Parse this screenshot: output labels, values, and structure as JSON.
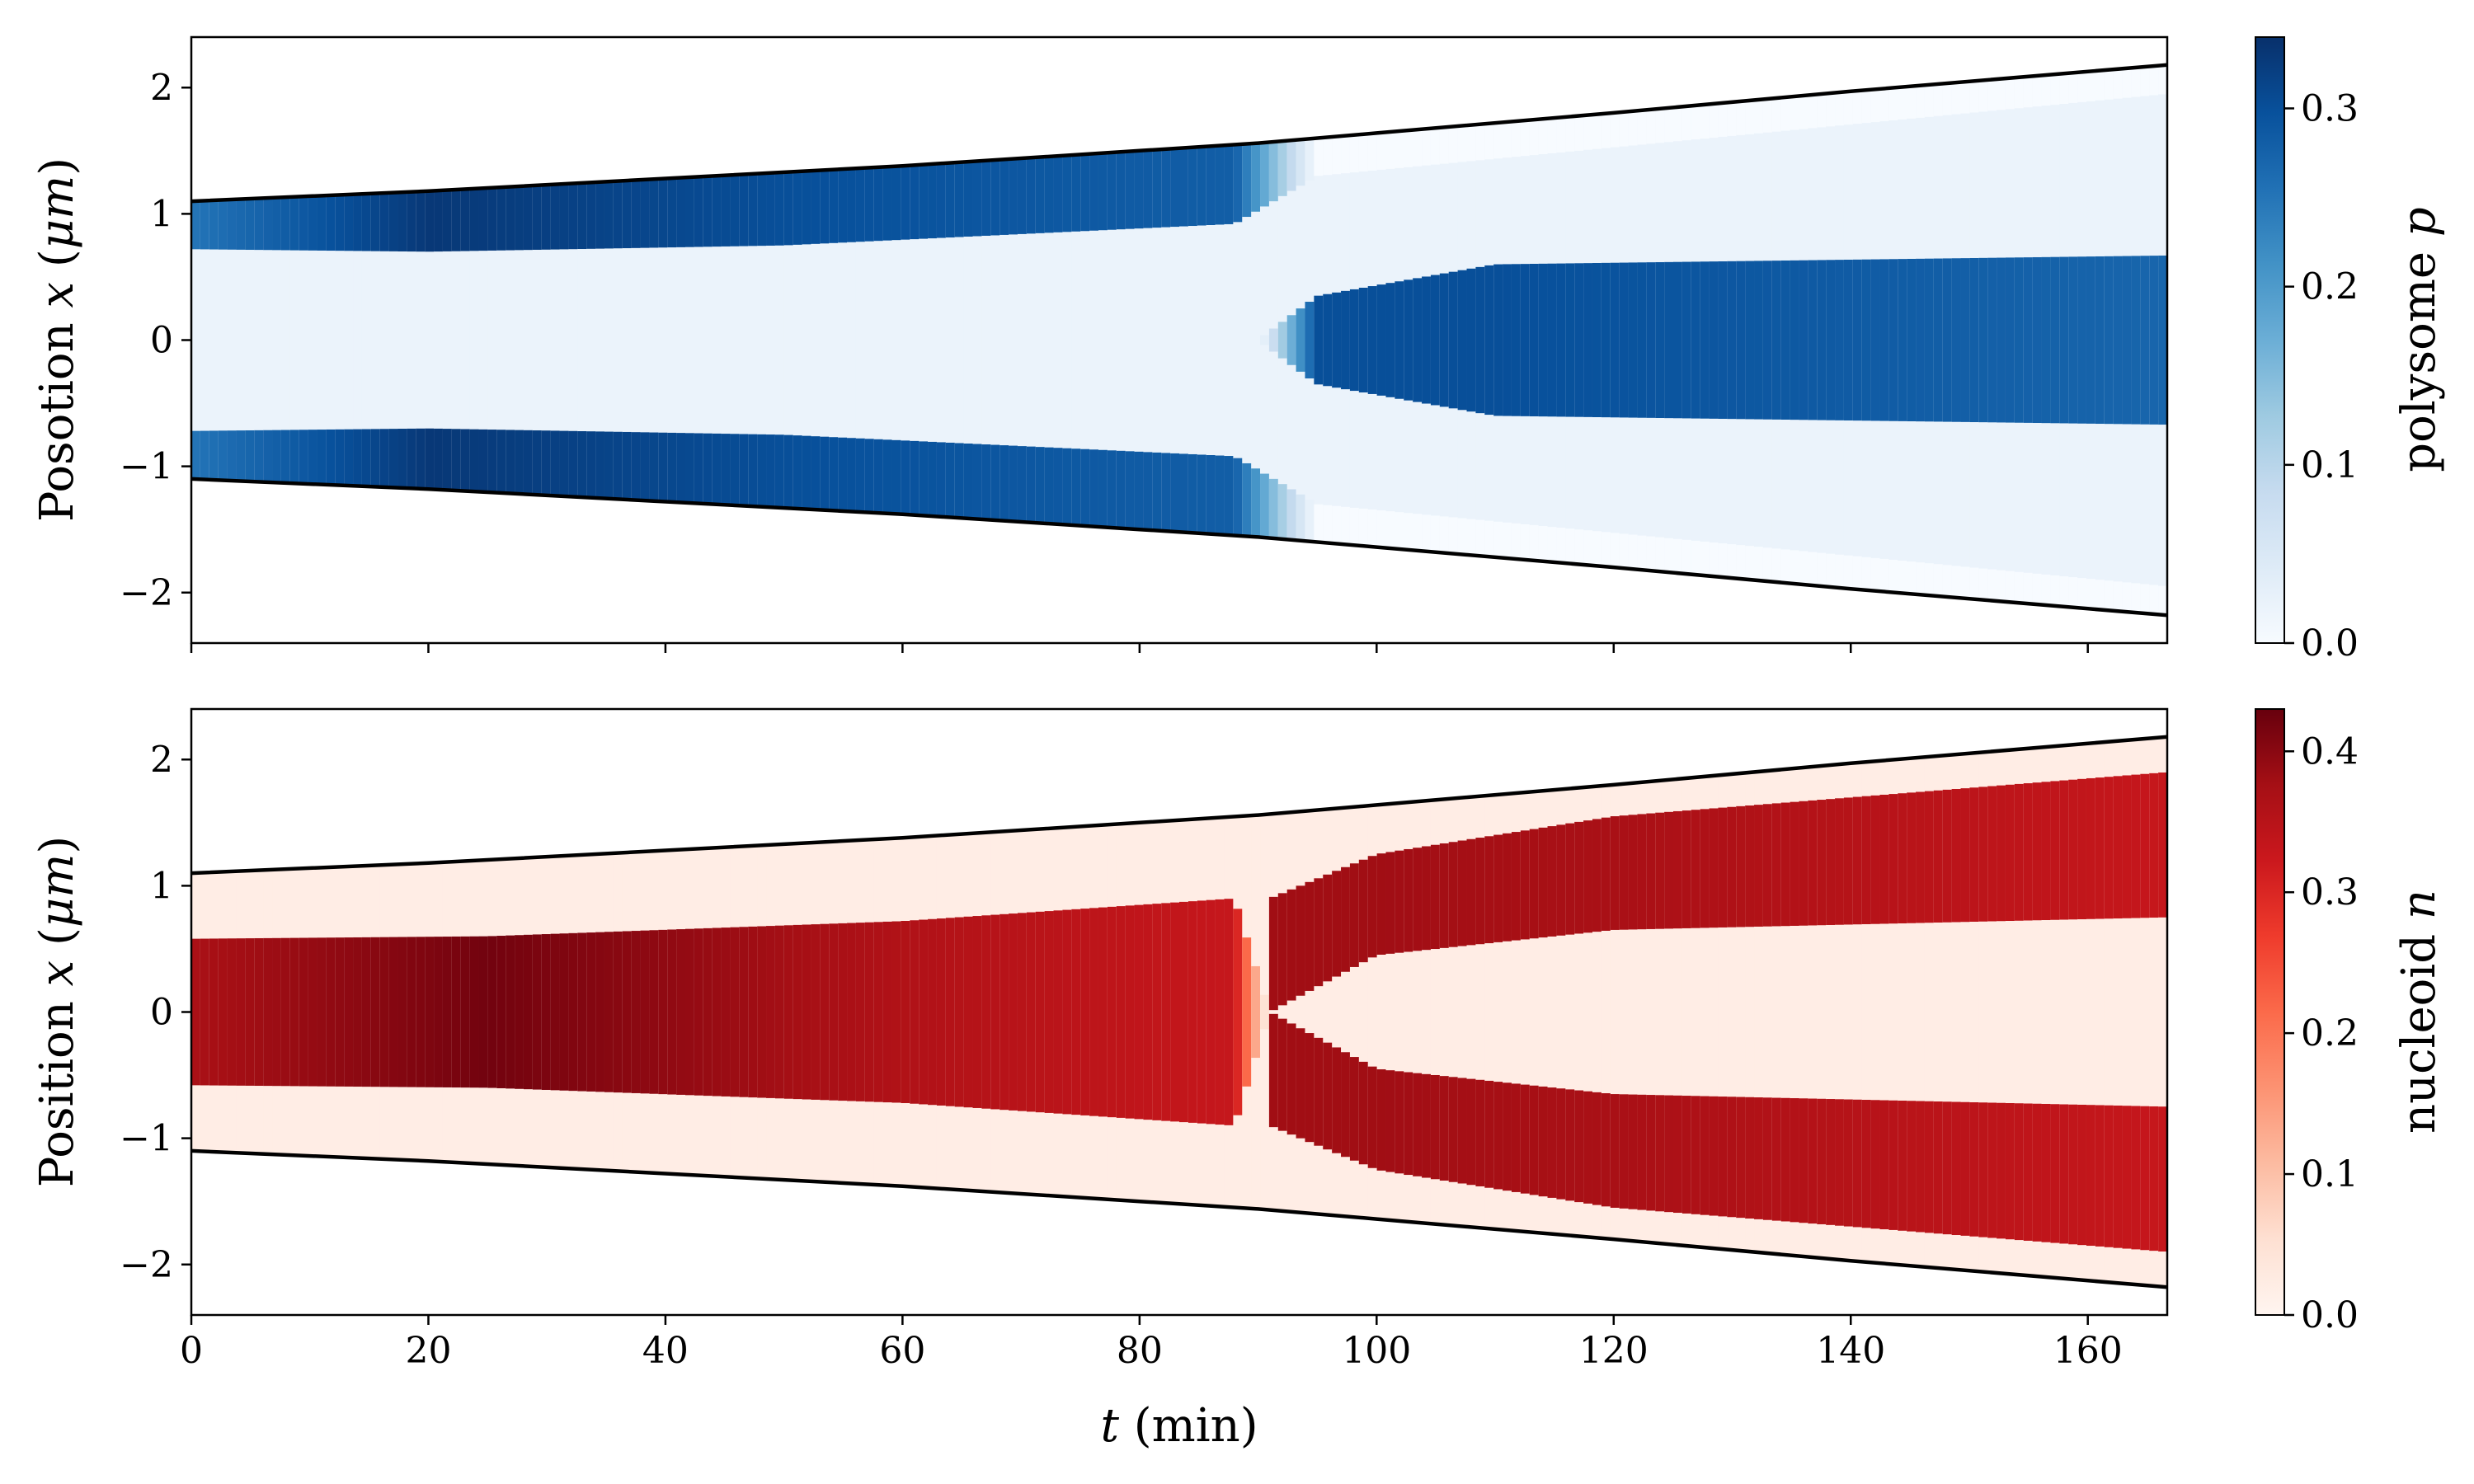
{
  "chart_data": [
    {
      "type": "heatmap",
      "panel": "top",
      "ylabel": {
        "text": "Posotion ",
        "var": "x",
        "unit_open": " (",
        "unit": "μm",
        "unit_close": ")"
      },
      "colorbar_label": {
        "text": "polysome ",
        "var": "p"
      },
      "colormap": "Blues",
      "colormap_stops": [
        "#f7fbff",
        "#deebf7",
        "#c6dbef",
        "#9ecae1",
        "#6baed6",
        "#4292c6",
        "#2171b5",
        "#08519c",
        "#08306b"
      ],
      "xlim": [
        0,
        166.7
      ],
      "ylim": [
        -2.4,
        2.4
      ],
      "clim": [
        0,
        0.34
      ],
      "x_ticks": [
        0,
        20,
        40,
        60,
        80,
        100,
        120,
        140,
        160
      ],
      "y_ticks": [
        2,
        1,
        0,
        -1,
        -2
      ],
      "y_tick_labels": [
        "2",
        "1",
        "0",
        "−1",
        "−2"
      ],
      "colorbar_ticks": [
        0.3,
        0.2,
        0.1,
        0.0
      ],
      "colorbar_tick_labels": [
        "0.3",
        "0.2",
        "0.1",
        "0.0"
      ],
      "show_x_tick_labels": false,
      "boundary_half_width": [
        {
          "t": 0,
          "x": 1.1
        },
        {
          "t": 20,
          "x": 1.18
        },
        {
          "t": 40,
          "x": 1.28
        },
        {
          "t": 60,
          "x": 1.38
        },
        {
          "t": 80,
          "x": 1.5
        },
        {
          "t": 90,
          "x": 1.56
        },
        {
          "t": 100,
          "x": 1.64
        },
        {
          "t": 120,
          "x": 1.8
        },
        {
          "t": 140,
          "x": 1.97
        },
        {
          "t": 166.7,
          "x": 2.18
        }
      ],
      "cell_band": [
        {
          "t": 0,
          "inner": 0.72,
          "value": 0.25
        },
        {
          "t": 20,
          "inner": 0.7,
          "value": 0.33
        },
        {
          "t": 50,
          "inner": 0.75,
          "value": 0.3
        },
        {
          "t": 88,
          "inner": 0.92,
          "value": 0.28
        },
        {
          "t": 95,
          "inner": 1.3,
          "value": 0.0
        },
        {
          "t": 166.7,
          "inner": 1.95,
          "value": 0.0
        }
      ],
      "center_band": [
        {
          "t": 90,
          "half_width": 0.0,
          "value": 0.0
        },
        {
          "t": 95,
          "half_width": 0.35,
          "value": 0.3
        },
        {
          "t": 110,
          "half_width": 0.6,
          "value": 0.3
        },
        {
          "t": 166.7,
          "half_width": 0.67,
          "value": 0.27
        }
      ],
      "background_value": 0.02
    },
    {
      "type": "heatmap",
      "panel": "bottom",
      "ylabel": {
        "text": "Position ",
        "var": "x",
        "unit_open": " (",
        "unit": "μm",
        "unit_close": ")"
      },
      "xlabel": {
        "var": "t",
        "text": " (min)"
      },
      "colorbar_label": {
        "text": "nucleoid ",
        "var": "n"
      },
      "colormap": "Reds",
      "colormap_stops": [
        "#fff5f0",
        "#fee0d2",
        "#fcbba1",
        "#fc9272",
        "#fb6a4a",
        "#ef3b2c",
        "#cb181d",
        "#a50f15",
        "#67000d"
      ],
      "xlim": [
        0,
        166.7
      ],
      "ylim": [
        -2.4,
        2.4
      ],
      "clim": [
        0,
        0.43
      ],
      "x_ticks": [
        0,
        20,
        40,
        60,
        80,
        100,
        120,
        140,
        160
      ],
      "x_tick_labels": [
        "0",
        "20",
        "40",
        "60",
        "80",
        "100",
        "120",
        "140",
        "160"
      ],
      "y_ticks": [
        2,
        1,
        0,
        -1,
        -2
      ],
      "y_tick_labels": [
        "2",
        "1",
        "0",
        "−1",
        "−2"
      ],
      "colorbar_ticks": [
        0.4,
        0.3,
        0.2,
        0.1,
        0.0
      ],
      "colorbar_tick_labels": [
        "0.4",
        "0.3",
        "0.2",
        "0.1",
        "0.0"
      ],
      "show_x_tick_labels": true,
      "boundary_half_width": [
        {
          "t": 0,
          "x": 1.1
        },
        {
          "t": 20,
          "x": 1.18
        },
        {
          "t": 40,
          "x": 1.28
        },
        {
          "t": 60,
          "x": 1.38
        },
        {
          "t": 80,
          "x": 1.5
        },
        {
          "t": 90,
          "x": 1.56
        },
        {
          "t": 100,
          "x": 1.64
        },
        {
          "t": 120,
          "x": 1.8
        },
        {
          "t": 140,
          "x": 1.97
        },
        {
          "t": 166.7,
          "x": 2.18
        }
      ],
      "center_band": [
        {
          "t": 0,
          "half_width": 0.58,
          "value": 0.37
        },
        {
          "t": 25,
          "half_width": 0.6,
          "value": 0.42
        },
        {
          "t": 60,
          "half_width": 0.72,
          "value": 0.36
        },
        {
          "t": 88,
          "half_width": 0.9,
          "value": 0.33
        },
        {
          "t": 91,
          "half_width": 0.0,
          "value": 0.0
        }
      ],
      "split_bands": [
        {
          "t": 91,
          "inner": 0.0,
          "outer": 0.9,
          "value": 0.38
        },
        {
          "t": 100,
          "inner": 0.45,
          "outer": 1.25,
          "value": 0.38
        },
        {
          "t": 120,
          "inner": 0.65,
          "outer": 1.55,
          "value": 0.37
        },
        {
          "t": 166.7,
          "inner": 0.75,
          "outer": 1.9,
          "value": 0.33
        }
      ],
      "background_value": 0.02
    }
  ]
}
